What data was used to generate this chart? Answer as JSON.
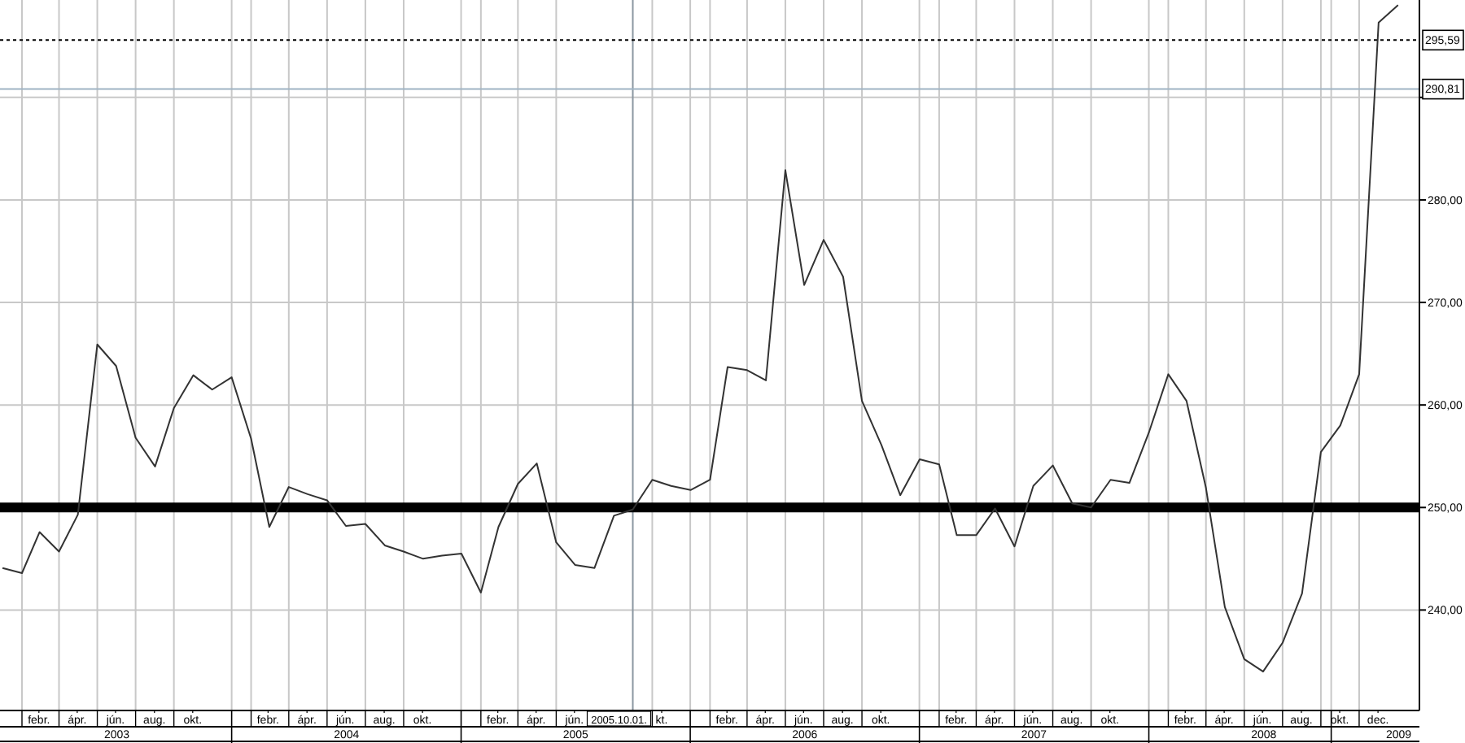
{
  "chart_data": {
    "type": "line",
    "x": [
      "2003-01",
      "2003-02",
      "2003-03",
      "2003-04",
      "2003-05",
      "2003-06",
      "2003-07",
      "2003-08",
      "2003-09",
      "2003-10",
      "2003-11",
      "2003-12",
      "2004-01",
      "2004-02",
      "2004-03",
      "2004-04",
      "2004-05",
      "2004-06",
      "2004-07",
      "2004-08",
      "2004-09",
      "2004-10",
      "2004-11",
      "2004-12",
      "2005-01",
      "2005-02",
      "2005-03",
      "2005-04",
      "2005-05",
      "2005-06",
      "2005-07",
      "2005-08",
      "2005-09",
      "2005-10",
      "2005-11",
      "2005-12",
      "2006-01",
      "2006-02",
      "2006-03",
      "2006-04",
      "2006-05",
      "2006-06",
      "2006-07",
      "2006-08",
      "2006-09",
      "2006-10",
      "2006-11",
      "2006-12",
      "2007-01",
      "2007-02",
      "2007-03",
      "2007-04",
      "2007-05",
      "2007-06",
      "2007-07",
      "2007-08",
      "2007-09",
      "2007-10",
      "2007-11",
      "2007-12",
      "2008-01",
      "2008-02",
      "2008-03",
      "2008-04",
      "2008-05",
      "2008-06",
      "2008-07",
      "2008-08",
      "2008-09",
      "2008-10",
      "2008-11",
      "2008-12",
      "2009-01",
      "2009-02"
    ],
    "series": [
      {
        "color": "#333333",
        "values": [
          244.1,
          243.6,
          247.6,
          245.7,
          249.3,
          265.9,
          263.8,
          256.8,
          254.0,
          259.7,
          262.9,
          261.5,
          262.7,
          256.7,
          248.1,
          252.0,
          251.3,
          250.7,
          248.2,
          248.4,
          246.3,
          245.7,
          245.0,
          245.3,
          245.5,
          241.7,
          248.1,
          252.3,
          254.3,
          246.6,
          244.4,
          244.1,
          249.2,
          249.8,
          252.7,
          252.1,
          251.7,
          252.7,
          263.7,
          263.4,
          262.4,
          282.9,
          271.7,
          276.1,
          272.5,
          260.4,
          256.1,
          251.2,
          254.7,
          254.2,
          247.3,
          247.3,
          249.9,
          246.2,
          252.1,
          254.1,
          250.4,
          250.0,
          252.7,
          252.4,
          257.3,
          263.0,
          260.4,
          251.9,
          240.3,
          235.2,
          234.0,
          236.8,
          241.6,
          255.4,
          258.0,
          263.0,
          297.3,
          299.0
        ]
      }
    ],
    "xlim": [
      "2002-12-28",
      "2009-03-07"
    ],
    "xticks": [
      {
        "value": "2003-02-28",
        "label": "febr."
      },
      {
        "value": "2003-04-30",
        "label": "ápr."
      },
      {
        "value": "2003-06-30",
        "label": "jún."
      },
      {
        "value": "2003-08-31",
        "label": "aug."
      },
      {
        "value": "2003-10-31",
        "label": "okt."
      },
      {
        "value": "2004-02-28",
        "label": "febr."
      },
      {
        "value": "2004-04-30",
        "label": "ápr."
      },
      {
        "value": "2004-06-30",
        "label": "jún."
      },
      {
        "value": "2004-08-31",
        "label": "aug."
      },
      {
        "value": "2004-10-31",
        "label": "okt."
      },
      {
        "value": "2005-02-28",
        "label": "febr."
      },
      {
        "value": "2005-04-30",
        "label": "ápr."
      },
      {
        "value": "2005-06-30",
        "label": "jún."
      },
      {
        "value": "2005-11-16",
        "label": "kt."
      },
      {
        "value": "2006-02-28",
        "label": "febr."
      },
      {
        "value": "2006-04-30",
        "label": "ápr."
      },
      {
        "value": "2006-06-30",
        "label": "jún."
      },
      {
        "value": "2006-08-31",
        "label": "aug."
      },
      {
        "value": "2006-10-31",
        "label": "okt."
      },
      {
        "value": "2007-02-28",
        "label": "febr."
      },
      {
        "value": "2007-04-30",
        "label": "ápr."
      },
      {
        "value": "2007-06-30",
        "label": "jún."
      },
      {
        "value": "2007-08-31",
        "label": "aug."
      },
      {
        "value": "2007-10-31",
        "label": "okt."
      },
      {
        "value": "2008-02-28",
        "label": "febr."
      },
      {
        "value": "2008-04-30",
        "label": "ápr."
      },
      {
        "value": "2008-06-30",
        "label": "jún."
      },
      {
        "value": "2008-08-31",
        "label": "aug."
      },
      {
        "value": "2008-10-31",
        "label": "okt."
      },
      {
        "value": "2008-12-31",
        "label": "dec."
      }
    ],
    "x2lim": [
      "2002-12-28",
      "2009-03-07"
    ],
    "x2ticks": [
      {
        "value": "2003-07-02",
        "label": "2003"
      },
      {
        "value": "2004-07-02",
        "label": "2004"
      },
      {
        "value": "2005-07-02",
        "label": "2005"
      },
      {
        "value": "2006-07-02",
        "label": "2006"
      },
      {
        "value": "2007-07-02",
        "label": "2007"
      },
      {
        "value": "2008-07-02",
        "label": "2008"
      },
      {
        "value": "2009-02-02",
        "label": "2009"
      }
    ],
    "ylim": [
      230.2,
      299.5
    ],
    "yticks": [
      {
        "value": 240,
        "label": "240,00"
      },
      {
        "value": 250,
        "label": "250,00"
      },
      {
        "value": 260,
        "label": "260,00"
      },
      {
        "value": 270,
        "label": "270,00"
      },
      {
        "value": 280,
        "label": "280,00"
      },
      {
        "value": 290,
        "label": null
      }
    ],
    "grid": true,
    "line_style": "solid",
    "ref_lines": [
      {
        "axis": "y",
        "value": 250,
        "color": "#000000",
        "line_style": "solid"
      },
      {
        "axis": "y",
        "value": 295.59,
        "label": "295,59",
        "color": "#000000",
        "line_style": "dotted"
      },
      {
        "axis": "y",
        "value": 290.81,
        "label": "290,81",
        "color": "#9fb4c4",
        "line_style": "solid"
      },
      {
        "axis": "x",
        "value": "2005-10-01",
        "label": "2005.10.01.",
        "color": "#8a96a0",
        "line_style": "solid"
      }
    ]
  }
}
